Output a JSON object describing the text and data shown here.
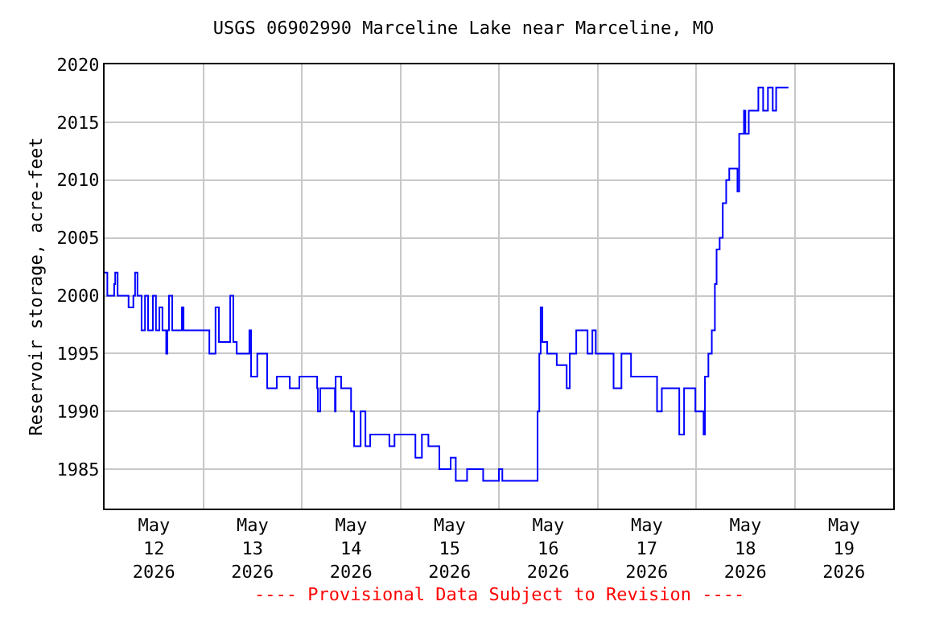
{
  "chart_data": {
    "type": "step",
    "title": "USGS 06902990 Marceline Lake near Marceline, MO",
    "ylabel": "Reservoir storage, acre-feet",
    "annotations": [
      "---- Provisional Data Subject to Revision ----"
    ],
    "x": [
      "2026-05-12T00:00",
      "2026-05-12T00:40",
      "2026-05-12T02:20",
      "2026-05-12T02:35",
      "2026-05-12T03:10",
      "2026-05-12T05:50",
      "2026-05-12T07:00",
      "2026-05-12T07:25",
      "2026-05-12T08:00",
      "2026-05-12T09:00",
      "2026-05-12T09:50",
      "2026-05-12T10:35",
      "2026-05-12T11:45",
      "2026-05-12T12:30",
      "2026-05-12T13:20",
      "2026-05-12T14:05",
      "2026-05-12T15:00",
      "2026-05-12T15:17",
      "2026-05-12T15:40",
      "2026-05-12T16:28",
      "2026-05-12T18:49",
      "2026-05-12T19:13",
      "2026-05-13T00:40",
      "2026-05-13T01:30",
      "2026-05-13T03:00",
      "2026-05-13T03:50",
      "2026-05-13T06:35",
      "2026-05-13T07:20",
      "2026-05-13T08:10",
      "2026-05-13T11:15",
      "2026-05-13T11:40",
      "2026-05-13T13:10",
      "2026-05-13T15:35",
      "2026-05-13T17:55",
      "2026-05-13T21:05",
      "2026-05-13T23:25",
      "2026-05-14T03:45",
      "2026-05-14T03:55",
      "2026-05-14T04:30",
      "2026-05-14T08:05",
      "2026-05-14T08:15",
      "2026-05-14T09:35",
      "2026-05-14T12:00",
      "2026-05-14T12:45",
      "2026-05-14T14:20",
      "2026-05-14T15:30",
      "2026-05-14T16:40",
      "2026-05-14T19:50",
      "2026-05-14T21:20",
      "2026-05-14T22:35",
      "2026-05-15T03:40",
      "2026-05-15T05:15",
      "2026-05-15T06:50",
      "2026-05-15T09:30",
      "2026-05-15T12:15",
      "2026-05-15T13:30",
      "2026-05-15T16:15",
      "2026-05-15T20:10",
      "2026-05-16T00:00",
      "2026-05-16T00:50",
      "2026-05-16T09:05",
      "2026-05-16T09:25",
      "2026-05-16T09:50",
      "2026-05-16T10:10",
      "2026-05-16T10:35",
      "2026-05-16T11:45",
      "2026-05-16T14:05",
      "2026-05-16T16:30",
      "2026-05-16T17:15",
      "2026-05-16T18:50",
      "2026-05-16T21:35",
      "2026-05-16T22:45",
      "2026-05-16T23:35",
      "2026-05-17T03:30",
      "2026-05-17T03:55",
      "2026-05-17T05:50",
      "2026-05-17T08:10",
      "2026-05-17T11:20",
      "2026-05-17T14:30",
      "2026-05-17T15:40",
      "2026-05-17T19:55",
      "2026-05-17T21:05",
      "2026-05-17T23:50",
      "2026-05-18T01:50",
      "2026-05-18T02:10",
      "2026-05-18T03:00",
      "2026-05-18T03:50",
      "2026-05-18T04:35",
      "2026-05-18T05:00",
      "2026-05-18T05:45",
      "2026-05-18T06:30",
      "2026-05-18T07:20",
      "2026-05-18T08:05",
      "2026-05-18T09:40",
      "2026-05-18T10:05",
      "2026-05-18T10:30",
      "2026-05-18T11:40",
      "2026-05-18T12:00",
      "2026-05-18T12:50",
      "2026-05-18T14:45",
      "2026-05-18T15:10",
      "2026-05-18T16:20",
      "2026-05-18T17:30",
      "2026-05-18T18:40",
      "2026-05-18T19:30",
      "2026-05-18T22:30"
    ],
    "series": [
      {
        "color": "#0000ff",
        "values": [
          2002,
          2000,
          2001,
          2002,
          2000,
          1999,
          2000,
          2002,
          2000,
          1997,
          2000,
          1997,
          2000,
          1997,
          1999,
          1997,
          1995,
          1997,
          2000,
          1997,
          1999,
          1997,
          1997,
          1995,
          1999,
          1996,
          2000,
          1996,
          1995,
          1997,
          1993,
          1995,
          1992,
          1993,
          1992,
          1993,
          1992,
          1990,
          1992,
          1990,
          1993,
          1992,
          1990,
          1987,
          1990,
          1987,
          1988,
          1988,
          1987,
          1988,
          1986,
          1988,
          1987,
          1985,
          1986,
          1984,
          1985,
          1984,
          1985,
          1984,
          1984,
          1990,
          1995,
          1999,
          1996,
          1995,
          1994,
          1992,
          1995,
          1997,
          1995,
          1997,
          1995,
          1995,
          1992,
          1995,
          1993,
          1993,
          1990,
          1992,
          1988,
          1992,
          1990,
          1988,
          1993,
          1995,
          1997,
          2001,
          2004,
          2005,
          2008,
          2010,
          2011,
          2011,
          2009,
          2014,
          2016,
          2014,
          2016,
          2016,
          2018,
          2016,
          2018,
          2016,
          2018,
          2018
        ]
      }
    ],
    "xlim": [
      "2026-05-12",
      "2026-05-20"
    ],
    "xticks": [
      {
        "value": "2026-05-12T12:00",
        "label": "May\n12\n2026"
      },
      {
        "value": "2026-05-13T00:00",
        "label": null
      },
      {
        "value": "2026-05-13T12:00",
        "label": "May\n13\n2026"
      },
      {
        "value": "2026-05-14T00:00",
        "label": null
      },
      {
        "value": "2026-05-14T12:00",
        "label": "May\n14\n2026"
      },
      {
        "value": "2026-05-15T00:00",
        "label": null
      },
      {
        "value": "2026-05-15T12:00",
        "label": "May\n15\n2026"
      },
      {
        "value": "2026-05-16T00:00",
        "label": null
      },
      {
        "value": "2026-05-16T12:00",
        "label": "May\n16\n2026"
      },
      {
        "value": "2026-05-17T00:00",
        "label": null
      },
      {
        "value": "2026-05-17T12:00",
        "label": "May\n17\n2026"
      },
      {
        "value": "2026-05-18T00:00",
        "label": null
      },
      {
        "value": "2026-05-18T12:00",
        "label": "May\n18\n2026"
      },
      {
        "value": "2026-05-19T00:00",
        "label": null
      },
      {
        "value": "2026-05-19T12:00",
        "label": "May\n19\n2026"
      }
    ],
    "ylim": [
      1981.6,
      2020
    ],
    "yticks": [
      1985,
      1990,
      1995,
      2000,
      2005,
      2010,
      2015,
      2020
    ],
    "grid": true
  }
}
